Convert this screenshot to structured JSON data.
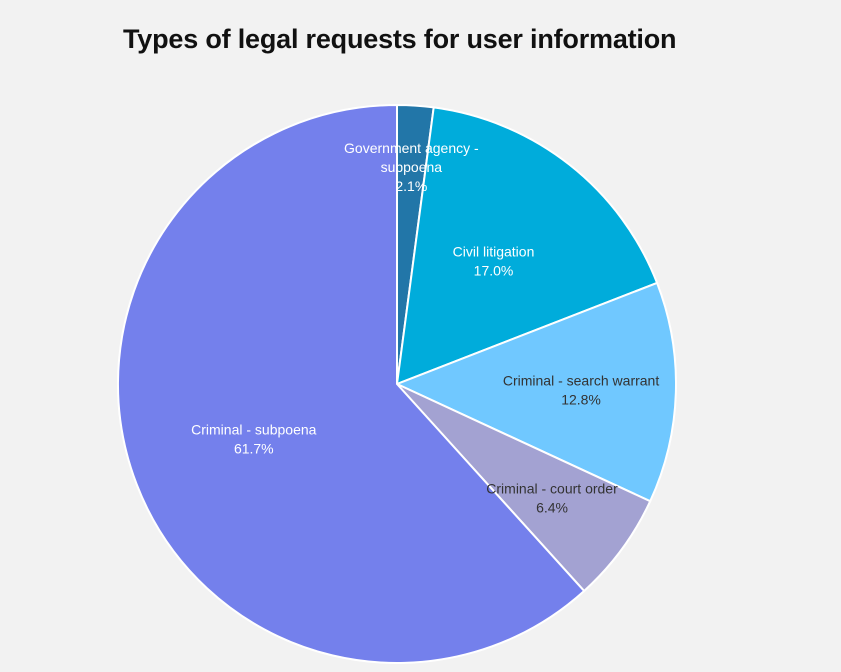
{
  "chart_data": {
    "type": "pie",
    "title": "Types of legal requests for user information",
    "slices": [
      {
        "label_lines": [
          "Government agency -",
          "subpoena"
        ],
        "value": 2.1,
        "percent_text": "2.1%",
        "color": "#2276a8",
        "label_color": "#ffffff"
      },
      {
        "label_lines": [
          "Civil litigation"
        ],
        "value": 17.0,
        "percent_text": "17.0%",
        "color": "#00acdb",
        "label_color": "#ffffff"
      },
      {
        "label_lines": [
          "Criminal - search warrant"
        ],
        "value": 12.8,
        "percent_text": "12.8%",
        "color": "#70c8ff",
        "label_color": "#333333"
      },
      {
        "label_lines": [
          "Criminal - court order"
        ],
        "value": 6.4,
        "percent_text": "6.4%",
        "color": "#a3a2d2",
        "label_color": "#333333"
      },
      {
        "label_lines": [
          "Criminal - subpoena"
        ],
        "value": 61.7,
        "percent_text": "61.7%",
        "color": "#7480ec",
        "label_color": "#ffffff"
      }
    ]
  }
}
